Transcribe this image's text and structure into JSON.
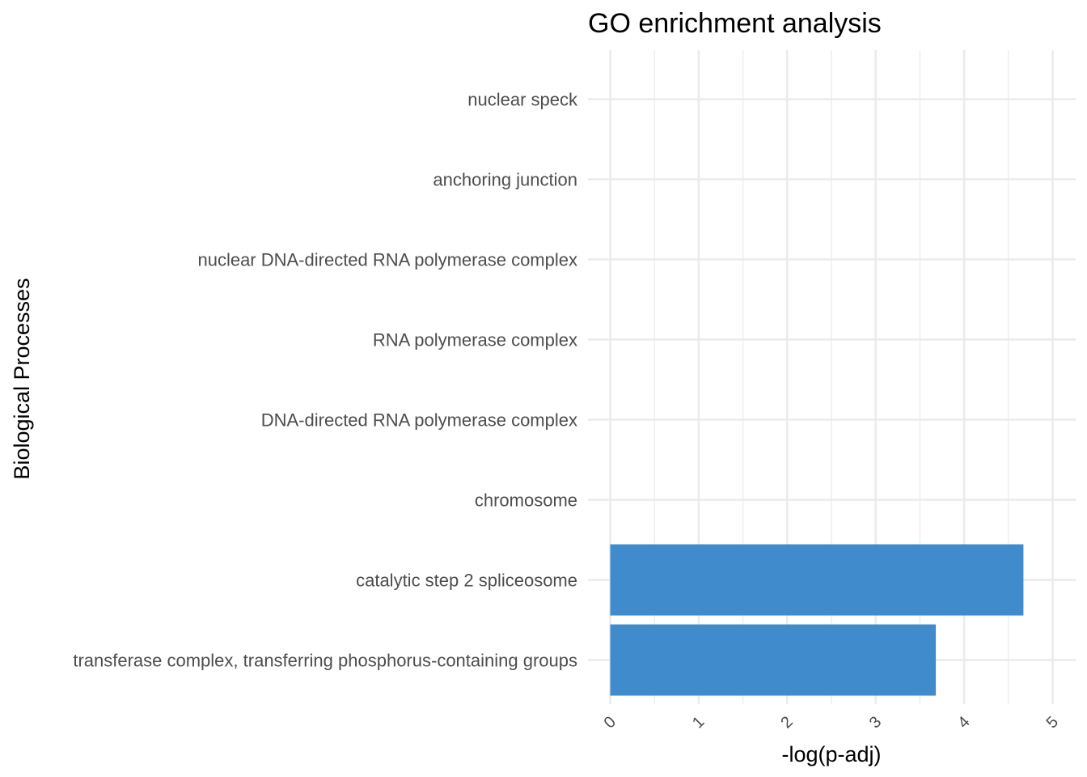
{
  "chart_data": {
    "type": "bar",
    "orientation": "horizontal",
    "title": "GO enrichment analysis",
    "xlabel": "-log(p-adj)",
    "ylabel": "Biological Processes",
    "categories": [
      "nuclear speck",
      "anchoring junction",
      "nuclear DNA-directed RNA polymerase complex",
      "RNA polymerase complex",
      "DNA-directed RNA polymerase complex",
      "chromosome",
      "catalytic step 2 spliceosome",
      "transferase complex, transferring phosphorus-containing groups"
    ],
    "values": [
      0,
      0,
      0,
      0,
      0,
      0,
      4.67,
      3.68
    ],
    "xlim": [
      0,
      5
    ],
    "xticks": [
      "0",
      "1",
      "2",
      "3",
      "4",
      "5"
    ],
    "grid": true,
    "bar_color": "#3f8bcb",
    "grid_color": "#ebebeb"
  }
}
